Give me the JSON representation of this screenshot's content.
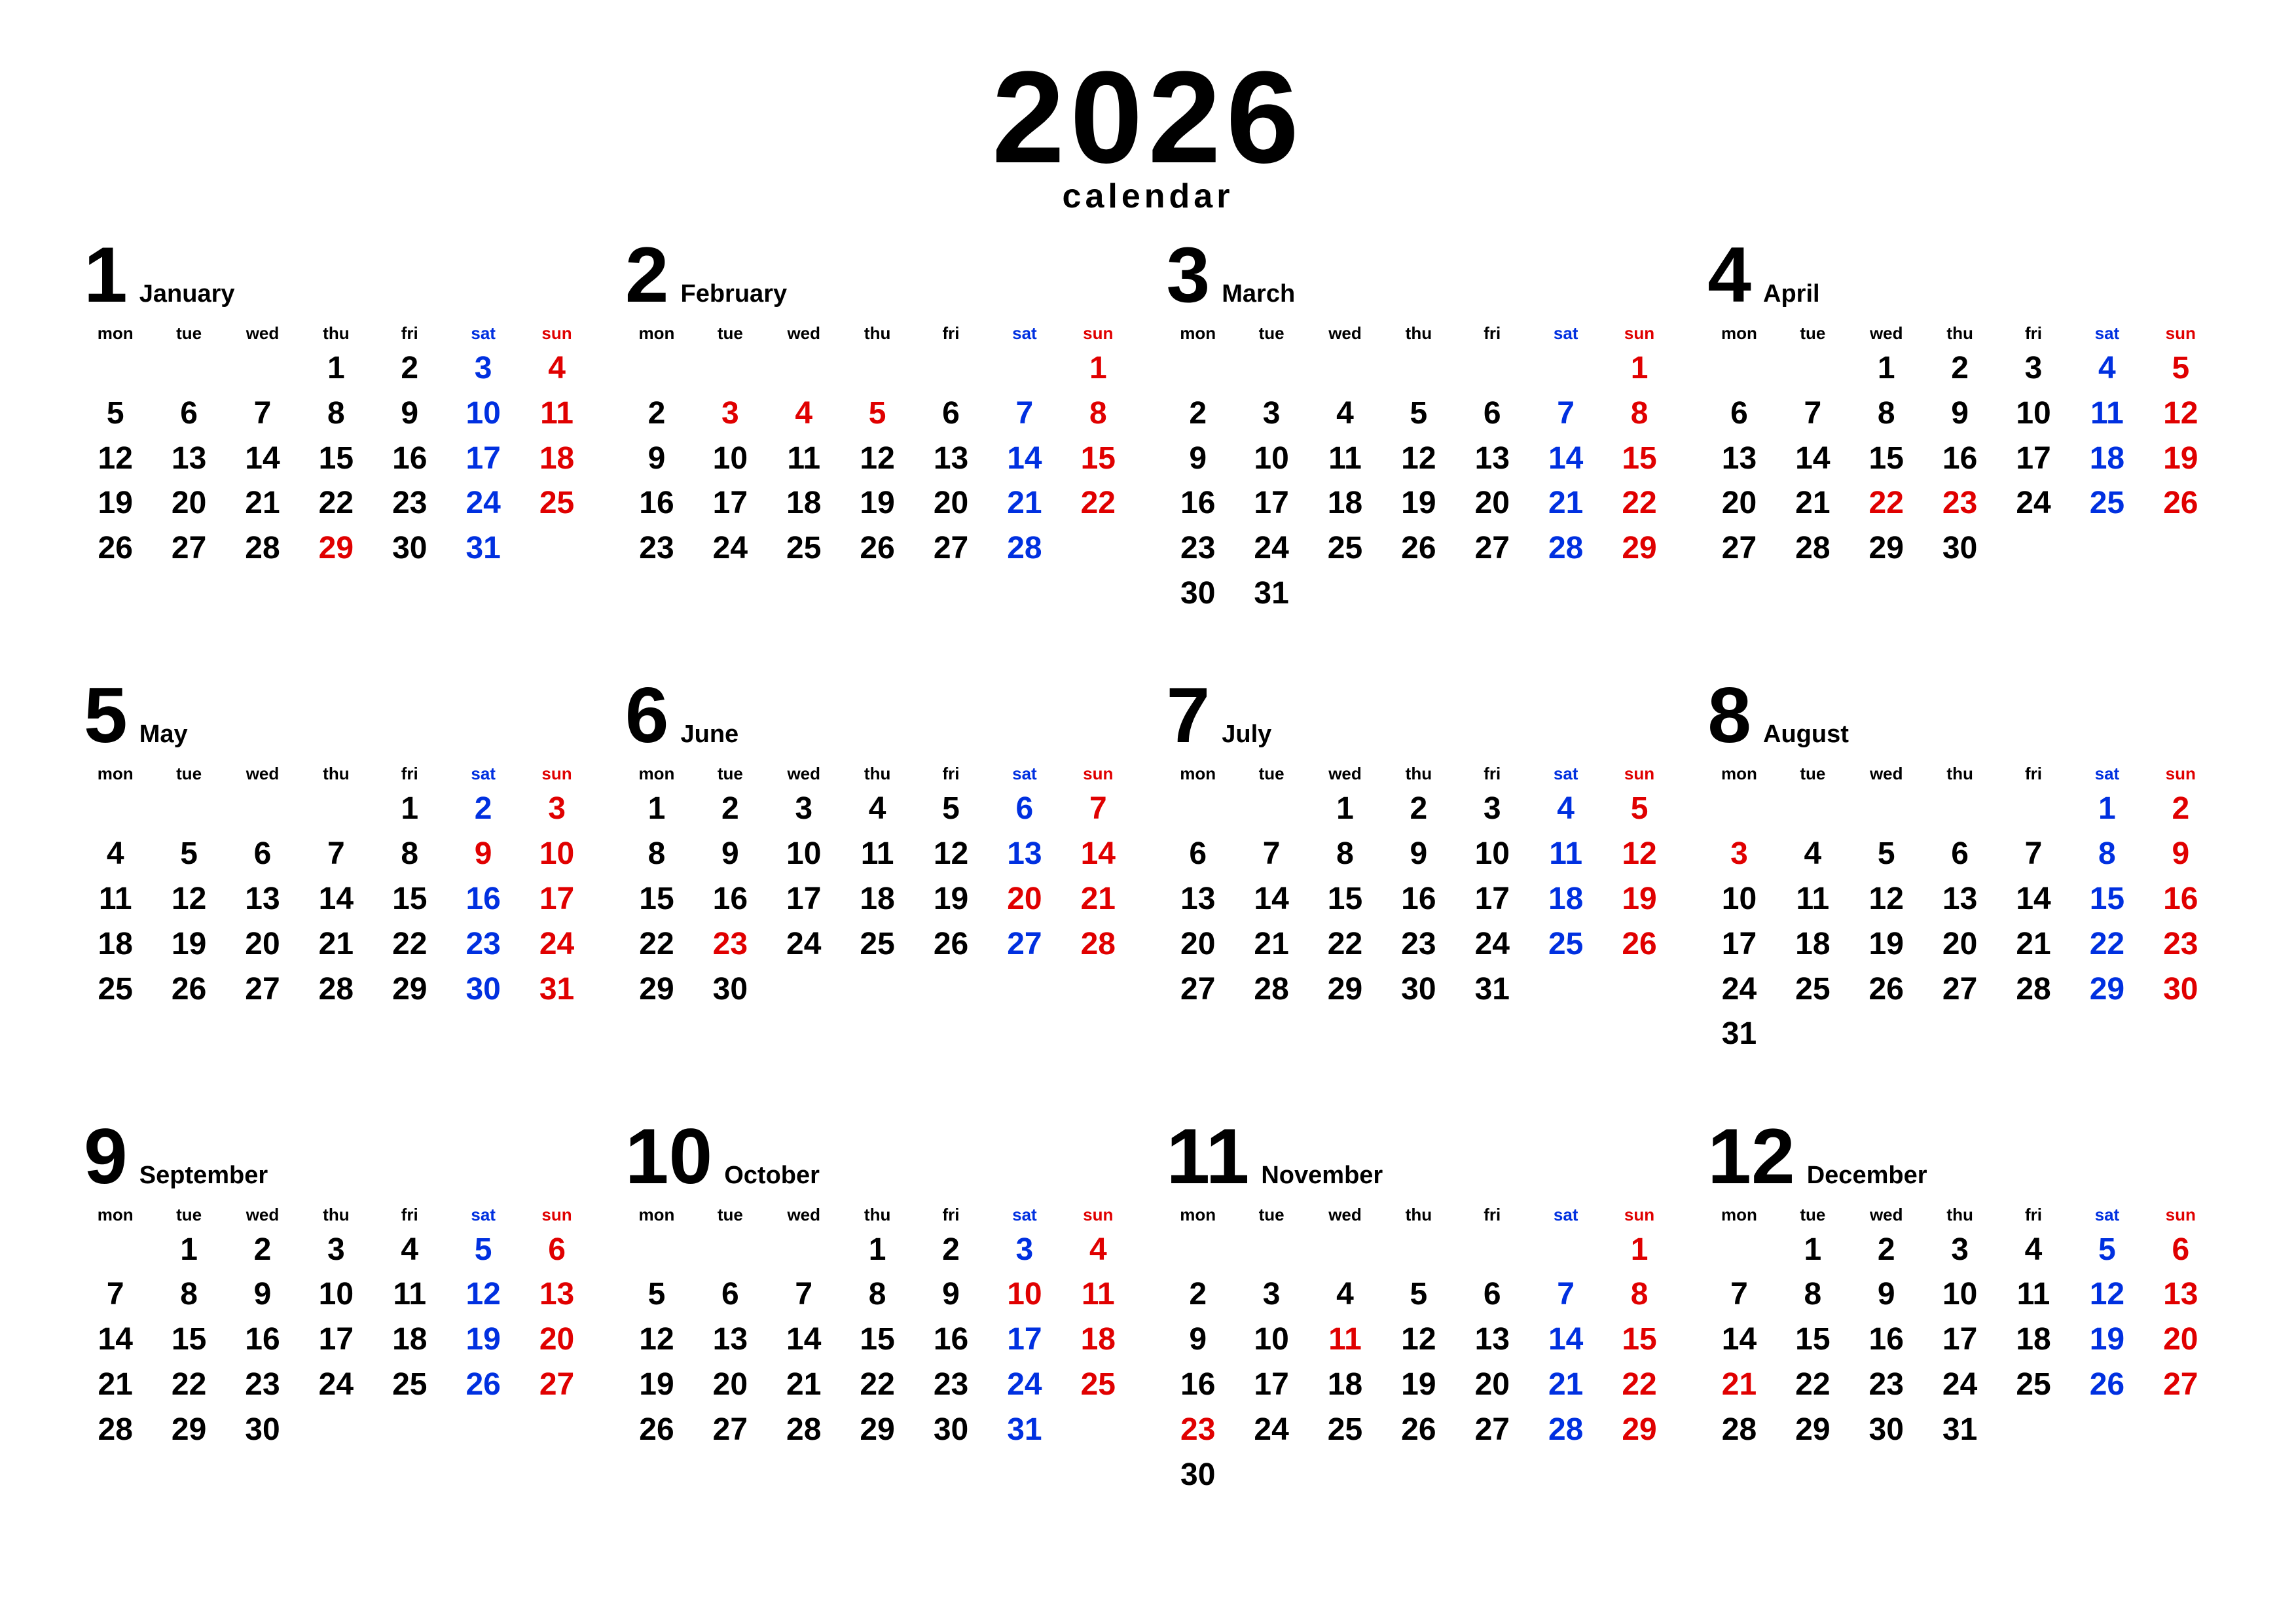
{
  "colors": {
    "weekday": "#000000",
    "saturday": "#0030e0",
    "sunday_holiday": "#e00000",
    "background": "#ffffff"
  },
  "header": {
    "year": "2026",
    "subtitle": "calendar"
  },
  "dow_labels": [
    "mon",
    "tue",
    "wed",
    "thu",
    "fri",
    "sat",
    "sun"
  ],
  "months": [
    {
      "num": "1",
      "name": "January",
      "lead": 3,
      "ndays": 31,
      "holidays": [
        29
      ]
    },
    {
      "num": "2",
      "name": "February",
      "lead": 6,
      "ndays": 28,
      "holidays": [
        3,
        4,
        5
      ]
    },
    {
      "num": "3",
      "name": "March",
      "lead": 6,
      "ndays": 31,
      "holidays": []
    },
    {
      "num": "4",
      "name": "April",
      "lead": 2,
      "ndays": 30,
      "holidays": [
        22,
        23
      ]
    },
    {
      "num": "5",
      "name": "May",
      "lead": 4,
      "ndays": 31,
      "holidays": [
        9
      ]
    },
    {
      "num": "6",
      "name": "June",
      "lead": 0,
      "ndays": 30,
      "holidays": [
        20,
        23
      ]
    },
    {
      "num": "7",
      "name": "July",
      "lead": 2,
      "ndays": 31,
      "holidays": []
    },
    {
      "num": "8",
      "name": "August",
      "lead": 5,
      "ndays": 31,
      "holidays": [
        3,
        23
      ]
    },
    {
      "num": "9",
      "name": "September",
      "lead": 1,
      "ndays": 30,
      "holidays": []
    },
    {
      "num": "10",
      "name": "October",
      "lead": 3,
      "ndays": 31,
      "holidays": [
        10
      ]
    },
    {
      "num": "11",
      "name": "November",
      "lead": 6,
      "ndays": 30,
      "holidays": [
        11,
        23
      ]
    },
    {
      "num": "12",
      "name": "December",
      "lead": 1,
      "ndays": 31,
      "holidays": [
        21
      ]
    }
  ]
}
